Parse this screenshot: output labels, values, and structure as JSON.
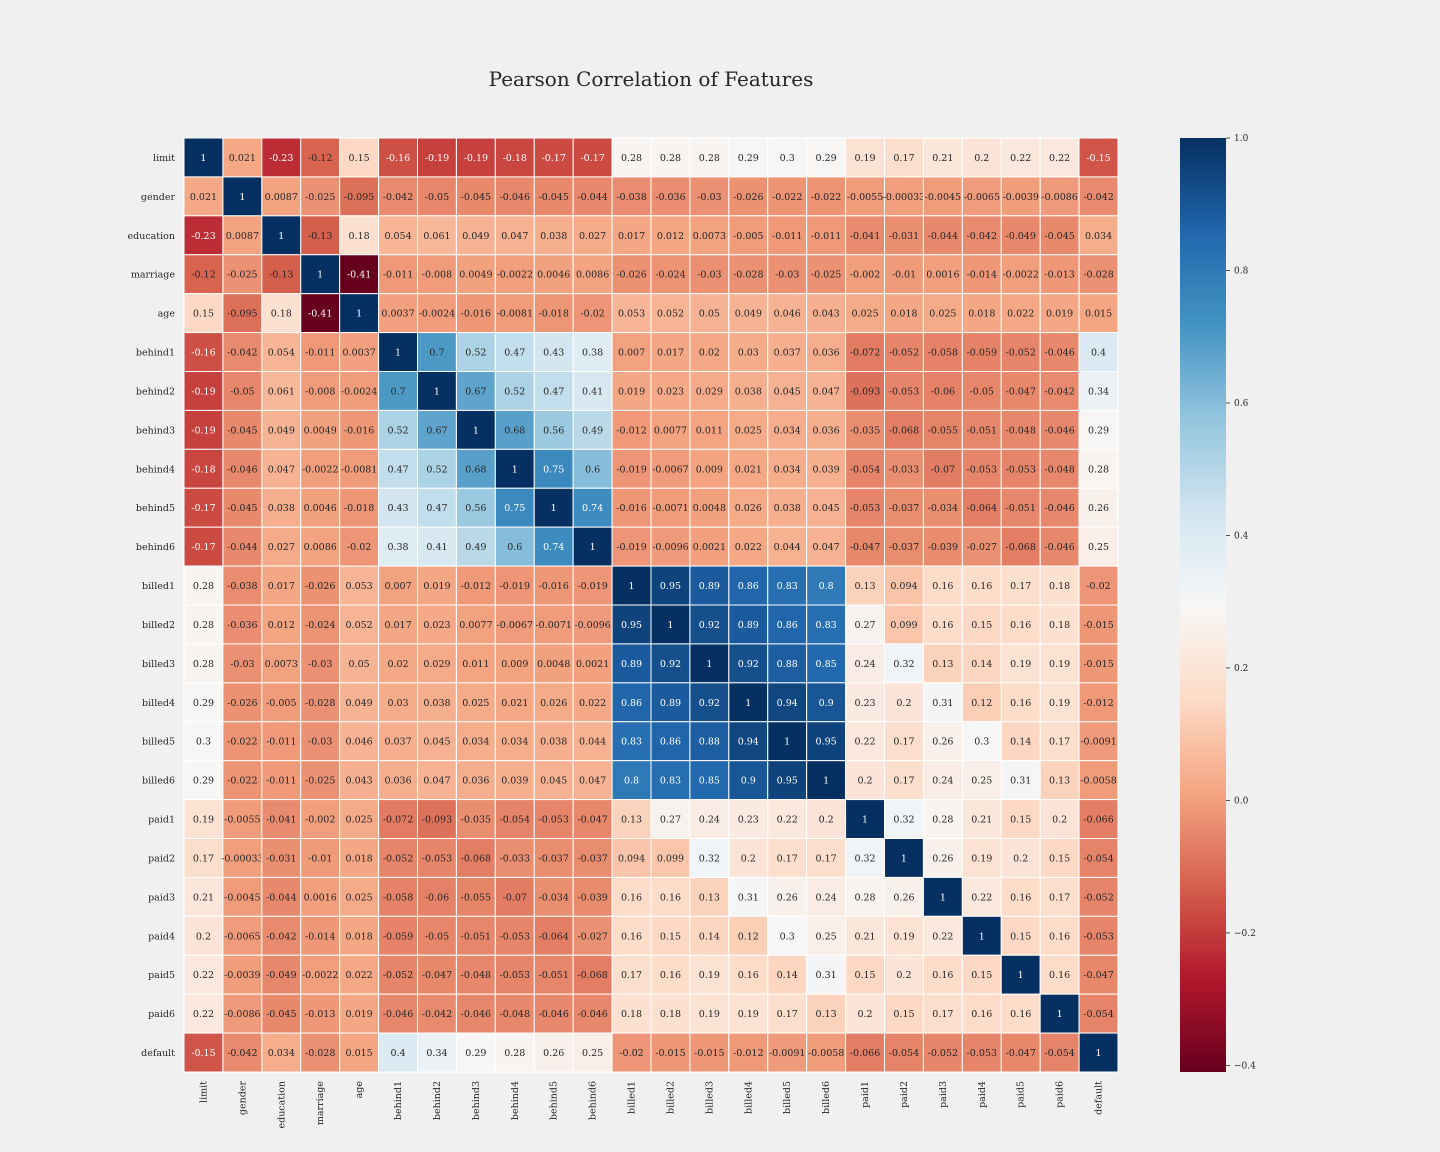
{
  "chart_data": {
    "type": "heatmap",
    "title": "Pearson Correlation of Features",
    "labels": [
      "limit",
      "gender",
      "education",
      "marriage",
      "age",
      "behind1",
      "behind2",
      "behind3",
      "behind4",
      "behind5",
      "behind6",
      "billed1",
      "billed2",
      "billed3",
      "billed4",
      "billed5",
      "billed6",
      "paid1",
      "paid2",
      "paid3",
      "paid4",
      "paid5",
      "paid6",
      "default"
    ],
    "matrix": [
      [
        1,
        0.021,
        -0.23,
        -0.12,
        0.15,
        -0.16,
        -0.19,
        -0.19,
        -0.18,
        -0.17,
        -0.17,
        0.28,
        0.28,
        0.28,
        0.29,
        0.3,
        0.29,
        0.19,
        0.17,
        0.21,
        0.2,
        0.22,
        0.22,
        -0.15
      ],
      [
        0.021,
        1,
        0.0087,
        -0.025,
        -0.095,
        -0.042,
        -0.05,
        -0.045,
        -0.046,
        -0.045,
        -0.044,
        -0.038,
        -0.036,
        -0.03,
        -0.026,
        -0.022,
        -0.022,
        -0.0055,
        -0.00033,
        -0.0045,
        -0.0065,
        -0.0039,
        -0.0086,
        -0.042
      ],
      [
        -0.23,
        0.0087,
        1,
        -0.13,
        0.18,
        0.054,
        0.061,
        0.049,
        0.047,
        0.038,
        0.027,
        0.017,
        0.012,
        0.0073,
        -0.005,
        -0.011,
        -0.011,
        -0.041,
        -0.031,
        -0.044,
        -0.042,
        -0.049,
        -0.045,
        0.034
      ],
      [
        -0.12,
        -0.025,
        -0.13,
        1,
        -0.41,
        -0.011,
        -0.008,
        0.0049,
        -0.0022,
        0.0046,
        0.0086,
        -0.026,
        -0.024,
        -0.03,
        -0.028,
        -0.03,
        -0.025,
        -0.002,
        -0.01,
        0.0016,
        -0.014,
        -0.0022,
        -0.013,
        -0.028
      ],
      [
        0.15,
        -0.095,
        0.18,
        -0.41,
        1,
        0.0037,
        -0.0024,
        -0.016,
        -0.0081,
        -0.018,
        -0.02,
        0.053,
        0.052,
        0.05,
        0.049,
        0.046,
        0.043,
        0.025,
        0.018,
        0.025,
        0.018,
        0.022,
        0.019,
        0.015
      ],
      [
        -0.16,
        -0.042,
        0.054,
        -0.011,
        0.0037,
        1,
        0.7,
        0.52,
        0.47,
        0.43,
        0.38,
        0.007,
        0.017,
        0.02,
        0.03,
        0.037,
        0.036,
        -0.072,
        -0.052,
        -0.058,
        -0.059,
        -0.052,
        -0.046,
        0.4
      ],
      [
        -0.19,
        -0.05,
        0.061,
        -0.008,
        -0.0024,
        0.7,
        1,
        0.67,
        0.52,
        0.47,
        0.41,
        0.019,
        0.023,
        0.029,
        0.038,
        0.045,
        0.047,
        -0.093,
        -0.053,
        -0.06,
        -0.05,
        -0.047,
        -0.042,
        0.34
      ],
      [
        -0.19,
        -0.045,
        0.049,
        0.0049,
        -0.016,
        0.52,
        0.67,
        1,
        0.68,
        0.56,
        0.49,
        -0.012,
        0.0077,
        0.011,
        0.025,
        0.034,
        0.036,
        -0.035,
        -0.068,
        -0.055,
        -0.051,
        -0.048,
        -0.046,
        0.29
      ],
      [
        -0.18,
        -0.046,
        0.047,
        -0.0022,
        -0.0081,
        0.47,
        0.52,
        0.68,
        1,
        0.75,
        0.6,
        -0.019,
        -0.0067,
        0.009,
        0.021,
        0.034,
        0.039,
        -0.054,
        -0.033,
        -0.07,
        -0.053,
        -0.053,
        -0.048,
        0.28
      ],
      [
        -0.17,
        -0.045,
        0.038,
        0.0046,
        -0.018,
        0.43,
        0.47,
        0.56,
        0.75,
        1,
        0.74,
        -0.016,
        -0.0071,
        0.0048,
        0.026,
        0.038,
        0.045,
        -0.053,
        -0.037,
        -0.034,
        -0.064,
        -0.051,
        -0.046,
        0.26
      ],
      [
        -0.17,
        -0.044,
        0.027,
        0.0086,
        -0.02,
        0.38,
        0.41,
        0.49,
        0.6,
        0.74,
        1,
        -0.019,
        -0.0096,
        0.0021,
        0.022,
        0.044,
        0.047,
        -0.047,
        -0.037,
        -0.039,
        -0.027,
        -0.068,
        -0.046,
        0.25
      ],
      [
        0.28,
        -0.038,
        0.017,
        -0.026,
        0.053,
        0.007,
        0.019,
        -0.012,
        -0.019,
        -0.016,
        -0.019,
        1,
        0.95,
        0.89,
        0.86,
        0.83,
        0.8,
        0.13,
        0.094,
        0.16,
        0.16,
        0.17,
        0.18,
        -0.02
      ],
      [
        0.28,
        -0.036,
        0.012,
        -0.024,
        0.052,
        0.017,
        0.023,
        0.0077,
        -0.0067,
        -0.0071,
        -0.0096,
        0.95,
        1,
        0.92,
        0.89,
        0.86,
        0.83,
        0.27,
        0.099,
        0.16,
        0.15,
        0.16,
        0.18,
        -0.015
      ],
      [
        0.28,
        -0.03,
        0.0073,
        -0.03,
        0.05,
        0.02,
        0.029,
        0.011,
        0.009,
        0.0048,
        0.0021,
        0.89,
        0.92,
        1,
        0.92,
        0.88,
        0.85,
        0.24,
        0.32,
        0.13,
        0.14,
        0.19,
        0.19,
        -0.015
      ],
      [
        0.29,
        -0.026,
        -0.005,
        -0.028,
        0.049,
        0.03,
        0.038,
        0.025,
        0.021,
        0.026,
        0.022,
        0.86,
        0.89,
        0.92,
        1,
        0.94,
        0.9,
        0.23,
        0.2,
        0.31,
        0.12,
        0.16,
        0.19,
        -0.012
      ],
      [
        0.3,
        -0.022,
        -0.011,
        -0.03,
        0.046,
        0.037,
        0.045,
        0.034,
        0.034,
        0.038,
        0.044,
        0.83,
        0.86,
        0.88,
        0.94,
        1,
        0.95,
        0.22,
        0.17,
        0.26,
        0.3,
        0.14,
        0.17,
        -0.0091
      ],
      [
        0.29,
        -0.022,
        -0.011,
        -0.025,
        0.043,
        0.036,
        0.047,
        0.036,
        0.039,
        0.045,
        0.047,
        0.8,
        0.83,
        0.85,
        0.9,
        0.95,
        1,
        0.2,
        0.17,
        0.24,
        0.25,
        0.31,
        0.13,
        -0.0058
      ],
      [
        0.19,
        -0.0055,
        -0.041,
        -0.002,
        0.025,
        -0.072,
        -0.093,
        -0.035,
        -0.054,
        -0.053,
        -0.047,
        0.13,
        0.27,
        0.24,
        0.23,
        0.22,
        0.2,
        1,
        0.32,
        0.28,
        0.21,
        0.15,
        0.2,
        -0.066
      ],
      [
        0.17,
        -0.00033,
        -0.031,
        -0.01,
        0.018,
        -0.052,
        -0.053,
        -0.068,
        -0.033,
        -0.037,
        -0.037,
        0.094,
        0.099,
        0.32,
        0.2,
        0.17,
        0.17,
        0.32,
        1,
        0.26,
        0.19,
        0.2,
        0.15,
        -0.054
      ],
      [
        0.21,
        -0.0045,
        -0.044,
        0.0016,
        0.025,
        -0.058,
        -0.06,
        -0.055,
        -0.07,
        -0.034,
        -0.039,
        0.16,
        0.16,
        0.13,
        0.31,
        0.26,
        0.24,
        0.28,
        0.26,
        1,
        0.22,
        0.16,
        0.17,
        -0.052
      ],
      [
        0.2,
        -0.0065,
        -0.042,
        -0.014,
        0.018,
        -0.059,
        -0.05,
        -0.051,
        -0.053,
        -0.064,
        -0.027,
        0.16,
        0.15,
        0.14,
        0.12,
        0.3,
        0.25,
        0.21,
        0.19,
        0.22,
        1,
        0.15,
        0.16,
        -0.053
      ],
      [
        0.22,
        -0.0039,
        -0.049,
        -0.0022,
        0.022,
        -0.052,
        -0.047,
        -0.048,
        -0.053,
        -0.051,
        -0.068,
        0.17,
        0.16,
        0.19,
        0.16,
        0.14,
        0.31,
        0.15,
        0.2,
        0.16,
        0.15,
        1,
        0.16,
        -0.047
      ],
      [
        0.22,
        -0.0086,
        -0.045,
        -0.013,
        0.019,
        -0.046,
        -0.042,
        -0.046,
        -0.048,
        -0.046,
        -0.046,
        0.18,
        0.18,
        0.19,
        0.19,
        0.17,
        0.13,
        0.2,
        0.15,
        0.17,
        0.16,
        0.16,
        1,
        -0.054
      ],
      [
        -0.15,
        -0.042,
        0.034,
        -0.028,
        0.015,
        0.4,
        0.34,
        0.29,
        0.28,
        0.26,
        0.25,
        -0.02,
        -0.015,
        -0.015,
        -0.012,
        -0.0091,
        -0.0058,
        -0.066,
        -0.054,
        -0.052,
        -0.053,
        -0.047,
        -0.054,
        1
      ]
    ],
    "vmin": -0.41,
    "vmax": 1.0,
    "colormap": "RdBu",
    "colorbar_ticks": [
      "1.0",
      "0.8",
      "0.6",
      "0.4",
      "0.2",
      "0.0",
      "−0.2",
      "−0.4"
    ],
    "colorbar_tick_values": [
      1.0,
      0.8,
      0.6,
      0.4,
      0.2,
      0.0,
      -0.2,
      -0.4
    ],
    "colors": {
      "background": "#f0f0f0",
      "grid_line": "#ffffff",
      "text_dark": "#262626"
    }
  }
}
